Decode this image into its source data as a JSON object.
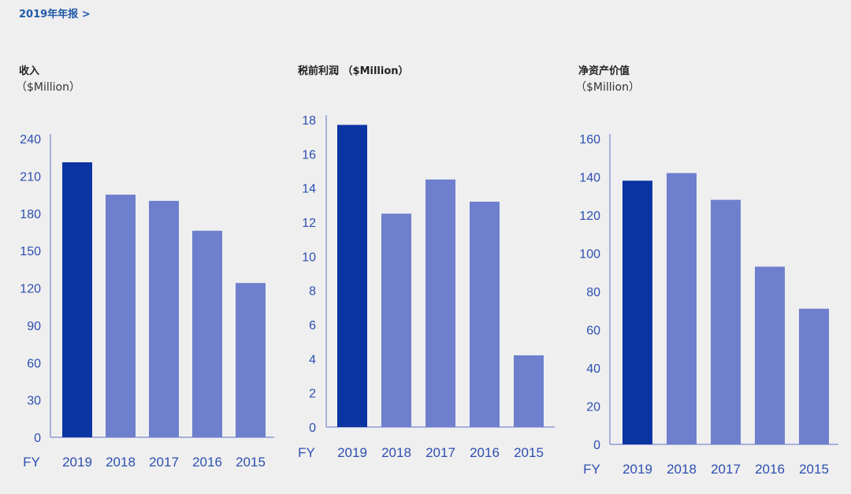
{
  "header": {
    "annual_report_link": "2019年年报 >"
  },
  "colors": {
    "highlight": "#0a34a2",
    "bar": "#6e7fcd",
    "axis": "#8f9ad6",
    "tick_text": "#2d4fb0"
  },
  "x_axis_prefix": "FY",
  "charts": [
    {
      "title": "收入",
      "unit": "（$Million）",
      "chart_data": {
        "type": "bar",
        "categories": [
          "2019",
          "2018",
          "2017",
          "2016",
          "2015"
        ],
        "values": [
          221,
          195,
          190,
          166,
          124
        ],
        "yticks": [
          0,
          30,
          60,
          90,
          120,
          150,
          180,
          210,
          240
        ],
        "ylim": [
          0,
          240
        ],
        "highlight_index": 0
      }
    },
    {
      "title": "税前利润 （$Million）",
      "unit": "",
      "chart_data": {
        "type": "bar",
        "categories": [
          "2019",
          "2018",
          "2017",
          "2016",
          "2015"
        ],
        "values": [
          17.7,
          12.5,
          14.5,
          13.2,
          4.2
        ],
        "yticks": [
          0,
          2,
          4,
          6,
          8,
          10,
          12,
          14,
          16,
          18
        ],
        "ylim": [
          0,
          18
        ],
        "highlight_index": 0
      }
    },
    {
      "title": "净资产价值",
      "unit": "（$Million）",
      "chart_data": {
        "type": "bar",
        "categories": [
          "2019",
          "2018",
          "2017",
          "2016",
          "2015"
        ],
        "values": [
          138,
          142,
          128,
          93,
          71
        ],
        "yticks": [
          0,
          20,
          40,
          60,
          80,
          100,
          120,
          140,
          160
        ],
        "ylim": [
          0,
          160
        ],
        "highlight_index": 0
      }
    }
  ]
}
